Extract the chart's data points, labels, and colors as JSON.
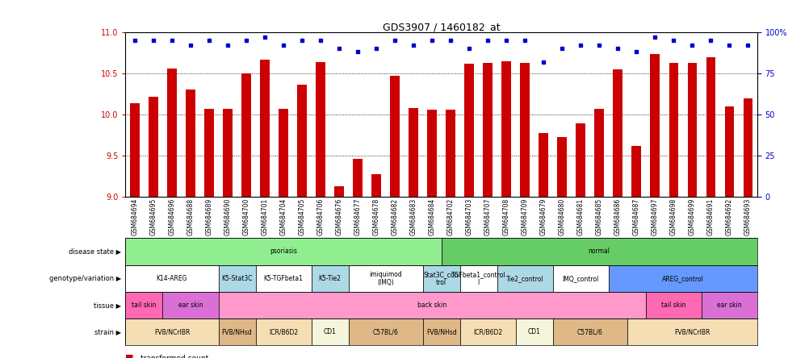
{
  "title": "GDS3907 / 1460182_at",
  "samples": [
    "GSM684694",
    "GSM684695",
    "GSM684696",
    "GSM684688",
    "GSM684689",
    "GSM684690",
    "GSM684700",
    "GSM684701",
    "GSM684704",
    "GSM684705",
    "GSM684706",
    "GSM684676",
    "GSM684677",
    "GSM684678",
    "GSM684682",
    "GSM684683",
    "GSM684684",
    "GSM684702",
    "GSM684703",
    "GSM684707",
    "GSM684708",
    "GSM684709",
    "GSM684679",
    "GSM684680",
    "GSM684681",
    "GSM684685",
    "GSM684686",
    "GSM684687",
    "GSM684697",
    "GSM684698",
    "GSM684699",
    "GSM684691",
    "GSM684692",
    "GSM684693"
  ],
  "bar_values": [
    10.14,
    10.22,
    10.56,
    10.3,
    10.07,
    10.07,
    10.5,
    10.67,
    10.07,
    10.36,
    10.64,
    9.13,
    9.46,
    9.28,
    10.47,
    10.08,
    10.06,
    10.06,
    10.62,
    10.63,
    10.65,
    10.63,
    9.78,
    9.73,
    9.89,
    10.07,
    10.55,
    9.62,
    10.74,
    10.63,
    10.63,
    10.7,
    10.1,
    10.2
  ],
  "percentile_values": [
    95,
    95,
    95,
    92,
    95,
    92,
    95,
    97,
    92,
    95,
    95,
    90,
    88,
    90,
    95,
    92,
    95,
    95,
    90,
    95,
    95,
    95,
    82,
    90,
    92,
    92,
    90,
    88,
    97,
    95,
    92,
    95,
    92,
    92
  ],
  "ylim_left": [
    9,
    11
  ],
  "ylim_right": [
    0,
    100
  ],
  "yticks_left": [
    9,
    9.5,
    10,
    10.5,
    11
  ],
  "yticks_right": [
    0,
    25,
    50,
    75,
    100
  ],
  "bar_color": "#cc0000",
  "dot_color": "#0000cc",
  "background_color": "#ffffff",
  "disease_segs": [
    {
      "label": "psoriasis",
      "start": 0,
      "end": 17,
      "color": "#90ee90"
    },
    {
      "label": "normal",
      "start": 17,
      "end": 34,
      "color": "#66cc66"
    }
  ],
  "genotype_variation": [
    {
      "label": "K14-AREG",
      "start": 0,
      "end": 5,
      "color": "#ffffff"
    },
    {
      "label": "K5-Stat3C",
      "start": 5,
      "end": 7,
      "color": "#add8e6"
    },
    {
      "label": "K5-TGFbeta1",
      "start": 7,
      "end": 10,
      "color": "#ffffff"
    },
    {
      "label": "K5-Tie2",
      "start": 10,
      "end": 12,
      "color": "#add8e6"
    },
    {
      "label": "imiquimod\n(IMQ)",
      "start": 12,
      "end": 16,
      "color": "#ffffff"
    },
    {
      "label": "Stat3C_con\ntrol",
      "start": 16,
      "end": 18,
      "color": "#add8e6"
    },
    {
      "label": "TGFbeta1_control\nl",
      "start": 18,
      "end": 20,
      "color": "#ffffff"
    },
    {
      "label": "Tie2_control",
      "start": 20,
      "end": 23,
      "color": "#add8e6"
    },
    {
      "label": "IMQ_control",
      "start": 23,
      "end": 26,
      "color": "#ffffff"
    },
    {
      "label": "AREG_control",
      "start": 26,
      "end": 34,
      "color": "#6699ff"
    }
  ],
  "tissue": [
    {
      "label": "tail skin",
      "start": 0,
      "end": 2,
      "color": "#ff69b4"
    },
    {
      "label": "ear skin",
      "start": 2,
      "end": 5,
      "color": "#da70d6"
    },
    {
      "label": "back skin",
      "start": 5,
      "end": 28,
      "color": "#ff99cc"
    },
    {
      "label": "tail skin",
      "start": 28,
      "end": 31,
      "color": "#ff69b4"
    },
    {
      "label": "ear skin",
      "start": 31,
      "end": 34,
      "color": "#da70d6"
    }
  ],
  "strain": [
    {
      "label": "FVB/NCrIBR",
      "start": 0,
      "end": 5,
      "color": "#f5deb3"
    },
    {
      "label": "FVB/NHsd",
      "start": 5,
      "end": 7,
      "color": "#deb887"
    },
    {
      "label": "ICR/B6D2",
      "start": 7,
      "end": 10,
      "color": "#f5deb3"
    },
    {
      "label": "CD1",
      "start": 10,
      "end": 12,
      "color": "#f5f5dc"
    },
    {
      "label": "C57BL/6",
      "start": 12,
      "end": 16,
      "color": "#deb887"
    },
    {
      "label": "FVB/NHsd",
      "start": 16,
      "end": 18,
      "color": "#deb887"
    },
    {
      "label": "ICR/B6D2",
      "start": 18,
      "end": 21,
      "color": "#f5deb3"
    },
    {
      "label": "CD1",
      "start": 21,
      "end": 23,
      "color": "#f5f5dc"
    },
    {
      "label": "C57BL/6",
      "start": 23,
      "end": 27,
      "color": "#deb887"
    },
    {
      "label": "FVB/NCrIBR",
      "start": 27,
      "end": 34,
      "color": "#f5deb3"
    }
  ],
  "row_labels": [
    "disease state",
    "genotype/variation",
    "tissue",
    "strain"
  ]
}
